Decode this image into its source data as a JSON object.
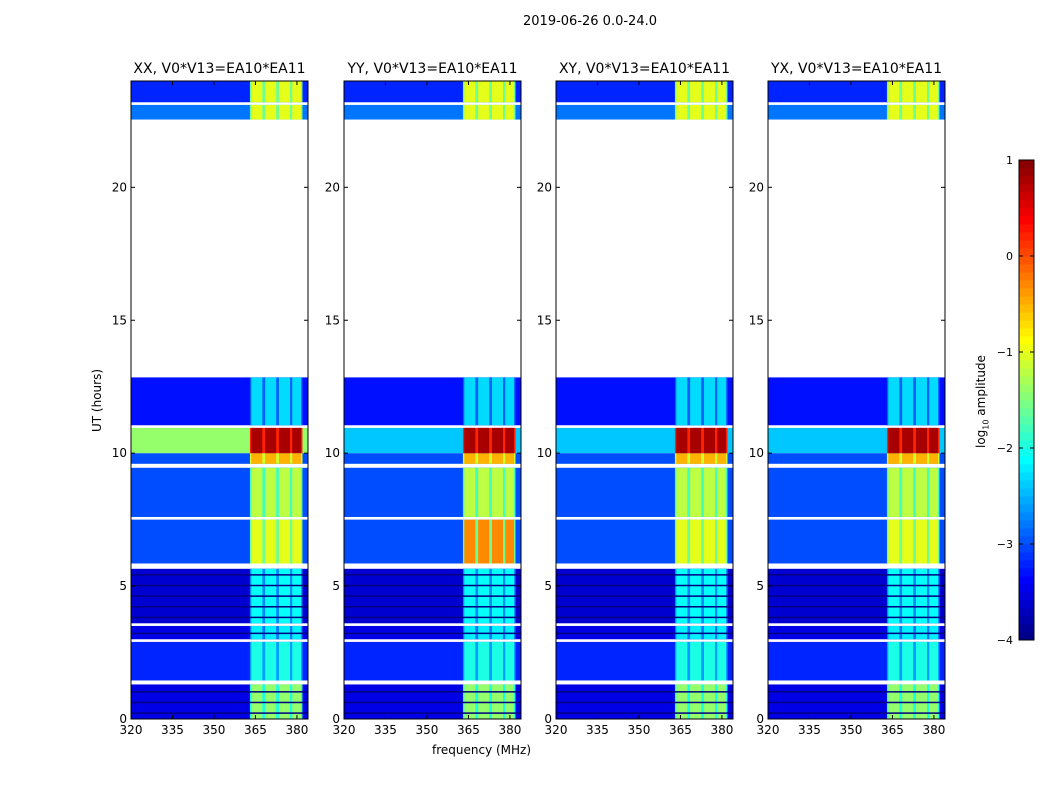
{
  "chart_data": {
    "type": "heatmap",
    "suptitle": "2019-06-26 0.0-24.0",
    "xlabel": "frequency (MHz)",
    "ylabel": "UT (hours)",
    "xlim": [
      320,
      384
    ],
    "ylim": [
      0,
      24
    ],
    "xticks": [
      "320",
      "335",
      "350",
      "365",
      "380"
    ],
    "yticks": [
      "0",
      "5",
      "10",
      "15",
      "20"
    ],
    "colorbar": {
      "label_main": "log",
      "label_sub": "10",
      "label_rest": " amplitude",
      "vmin": -4,
      "vmax": 1,
      "ticks": [
        "1",
        "0",
        "−1",
        "−2",
        "−3",
        "−4"
      ],
      "colormap": "jet"
    },
    "band_channels_mhz": [
      [
        363.5,
        367.5
      ],
      [
        368.5,
        372.5
      ],
      [
        373.5,
        377.5
      ],
      [
        378.3,
        381.5
      ]
    ],
    "time_segments_hours": [
      {
        "start": 0.0,
        "end": 1.3,
        "bg": -3.5,
        "band": -1.4
      },
      {
        "start": 1.45,
        "end": 2.9,
        "bg": -3.2,
        "band": -2.0
      },
      {
        "start": 3.0,
        "end": 3.5,
        "bg": -3.5,
        "band": -2.2
      },
      {
        "start": 3.6,
        "end": 5.65,
        "bg": -3.6,
        "band": -2.1
      },
      {
        "start": 5.85,
        "end": 7.5,
        "bg": -3.0,
        "band": -1.0
      },
      {
        "start": 7.6,
        "end": 9.45,
        "bg": -3.0,
        "band": -1.2
      },
      {
        "start": 9.6,
        "end": 10.0,
        "bg": -3.0,
        "band": -0.5
      },
      {
        "start": 10.0,
        "end": 10.95,
        "bg": -1.4,
        "band": 0.8
      },
      {
        "start": 11.05,
        "end": 12.85,
        "bg": -3.3,
        "band": -2.3
      },
      {
        "start": 22.55,
        "end": 23.1,
        "bg": -2.8,
        "band": -1.0
      },
      {
        "start": 23.2,
        "end": 24.0,
        "bg": -3.2,
        "band": -1.0
      }
    ],
    "panels": [
      {
        "title": "XX, V0*V13=EA10*EA11"
      },
      {
        "title": "YY, V0*V13=EA10*EA11"
      },
      {
        "title": "XY, V0*V13=EA10*EA11"
      },
      {
        "title": "YX, V0*V13=EA10*EA11"
      }
    ]
  }
}
